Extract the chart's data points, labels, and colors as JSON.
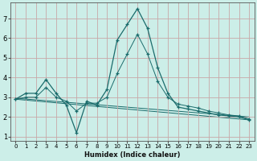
{
  "xlabel": "Humidex (Indice chaleur)",
  "background_color": "#cceee8",
  "grid_color": "#aad8d0",
  "line_color": "#1a6b6b",
  "xlim": [
    -0.5,
    23.5
  ],
  "ylim": [
    0.8,
    7.8
  ],
  "yticks": [
    1,
    2,
    3,
    4,
    5,
    6,
    7
  ],
  "xticks": [
    0,
    1,
    2,
    3,
    4,
    5,
    6,
    7,
    8,
    9,
    10,
    11,
    12,
    13,
    14,
    15,
    16,
    17,
    18,
    19,
    20,
    21,
    22,
    23
  ],
  "series_main_x": [
    0,
    1,
    2,
    3,
    4,
    5,
    6,
    7,
    8,
    9,
    10,
    11,
    12,
    13,
    14,
    15,
    16,
    17,
    18,
    19,
    20,
    21,
    22,
    23
  ],
  "series_main_y": [
    2.9,
    3.2,
    3.2,
    3.9,
    3.2,
    2.6,
    1.2,
    2.8,
    2.6,
    3.4,
    5.9,
    6.7,
    7.5,
    6.5,
    4.5,
    3.2,
    2.5,
    2.4,
    2.3,
    2.2,
    2.1,
    2.05,
    2.0,
    1.85
  ],
  "series_smooth_x": [
    0,
    1,
    2,
    3,
    4,
    5,
    6,
    7,
    8,
    9,
    10,
    11,
    12,
    13,
    14,
    15,
    16,
    17,
    18,
    19,
    20,
    21,
    22,
    23
  ],
  "series_smooth_y": [
    2.9,
    3.0,
    3.0,
    3.5,
    3.0,
    2.8,
    2.3,
    2.7,
    2.7,
    3.0,
    4.2,
    5.2,
    6.2,
    5.2,
    3.8,
    3.0,
    2.65,
    2.55,
    2.45,
    2.3,
    2.2,
    2.1,
    2.05,
    1.9
  ],
  "series_trend1_x": [
    0,
    23
  ],
  "series_trend1_y": [
    2.9,
    1.85
  ],
  "series_trend2_x": [
    0,
    23
  ],
  "series_trend2_y": [
    2.95,
    2.0
  ]
}
